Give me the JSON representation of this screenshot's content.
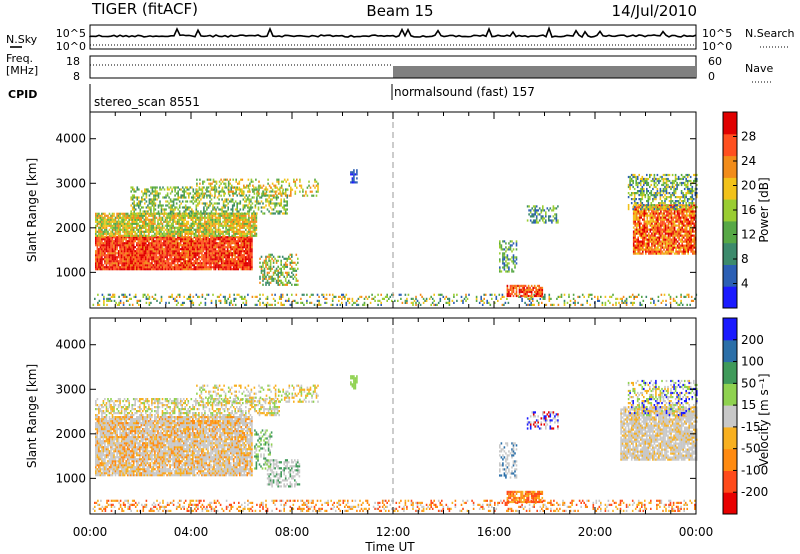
{
  "header": {
    "title": "TIGER (fitACF)",
    "beam": "Beam 15",
    "date": "14/Jul/2010"
  },
  "top_panels": {
    "nsky_label": "N.Sky",
    "nsearch_label": "N.Search",
    "nsky_ticks": [
      "10^5",
      "10^0"
    ],
    "nsearch_ticks": [
      "10^5",
      "10^0"
    ],
    "freq_label": [
      "Freq.",
      "[MHz]"
    ],
    "freq_ticks": [
      "18",
      "8"
    ],
    "nave_label": "Nave",
    "nave_ticks": [
      "60",
      "0"
    ],
    "cpid_label": "CPID",
    "cpid_segments": [
      "stereo_scan 8551",
      "normalsound (fast) 157"
    ]
  },
  "chart_data": [
    {
      "type": "heatmap",
      "parameter": "Power",
      "ylabel": "Slant Range [km]",
      "xlabel": "",
      "colorbar_label": "Power [dB]",
      "colorbar_ticks": [
        4,
        8,
        12,
        16,
        20,
        24,
        28
      ],
      "colorbar_range": [
        0,
        32
      ],
      "colors": [
        "#1a1aff",
        "#2b5fb4",
        "#3c8a6c",
        "#57a846",
        "#9acd32",
        "#f2c21a",
        "#f28c1a",
        "#ff5020",
        "#e00000"
      ],
      "y_ticks": [
        1000,
        2000,
        3000,
        4000
      ],
      "ylim": [
        200,
        4600
      ],
      "xlim": [
        0,
        24
      ],
      "x_ticks": [
        "00:00",
        "04:00",
        "08:00",
        "12:00",
        "16:00",
        "20:00",
        "00:00"
      ],
      "marker_time": 12
    },
    {
      "type": "heatmap",
      "parameter": "Velocity",
      "ylabel": "Slant Range [km]",
      "xlabel": "Time UT",
      "colorbar_label": "Velocity [m s⁻¹]",
      "colorbar_ticks": [
        -200,
        -100,
        -50,
        -15,
        15,
        50,
        100,
        200
      ],
      "colors": [
        "#e80000",
        "#ff4a1a",
        "#ff8a10",
        "#f8b020",
        "#c8c8c8",
        "#8fd250",
        "#3f9a5a",
        "#2b6fa8",
        "#1a1aff"
      ],
      "y_ticks": [
        1000,
        2000,
        3000,
        4000
      ],
      "ylim": [
        200,
        4600
      ],
      "xlim": [
        0,
        24
      ],
      "x_ticks": [
        "00:00",
        "04:00",
        "08:00",
        "12:00",
        "16:00",
        "20:00",
        "00:00"
      ],
      "marker_time": 12
    }
  ]
}
